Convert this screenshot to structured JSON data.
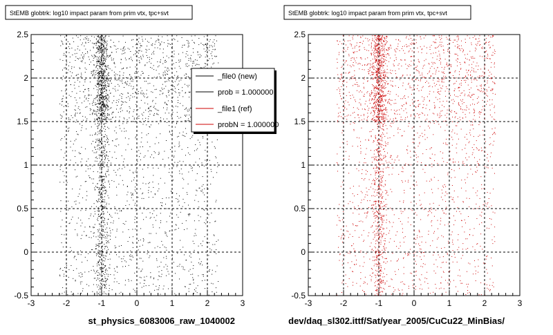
{
  "colors": {
    "background": "#ffffff",
    "new": "#000000",
    "ref": "#cc0000",
    "grid": "#000000",
    "legend_shadow": "#000000"
  },
  "footer_text": "",
  "legend": {
    "entries": [
      {
        "label": "_file0 (new)",
        "color": "#000000"
      },
      {
        "label": "prob = 1.000000",
        "color": "#000000"
      },
      {
        "label": "_file1 (ref)",
        "color": "#cc0000"
      },
      {
        "label": "probN = 1.000000",
        "color": "#cc0000"
      }
    ]
  },
  "chart_data": [
    {
      "type": "scatter",
      "title": "StEMB globtrk: log10 impact param from prim vtx, tpc+svt",
      "xlabel": "st_physics_6083006_raw_1040002",
      "ylabel": "",
      "xlim": [
        -3,
        3
      ],
      "ylim": [
        -0.5,
        2.5
      ],
      "xticks": [
        "-3",
        "-2",
        "-1",
        "0",
        "1",
        "2",
        "3"
      ],
      "yticks": [
        "-0.5",
        "0",
        "0.5",
        "1",
        "1.5",
        "2",
        "2.5"
      ],
      "grid": true,
      "legend_position": "top-right",
      "series": [
        {
          "name": "_file0 (new)",
          "color": "#000000",
          "x_range": [
            -2.2,
            2.3
          ],
          "y_range": [
            -0.5,
            2.5
          ],
          "dense_y_range": [
            1.5,
            2.5
          ],
          "dense_x_peak": -1
        }
      ]
    },
    {
      "type": "scatter",
      "title": "StEMB globtrk: log10 impact param from prim vtx, tpc+svt",
      "xlabel": "dev/daq_sl302.ittf/Sat/year_2005/CuCu22_MinBias/",
      "ylabel": "",
      "xlim": [
        -3,
        3
      ],
      "ylim": [
        -0.5,
        2.5
      ],
      "xticks": [
        "-3",
        "-2",
        "-1",
        "0",
        "1",
        "2",
        "3"
      ],
      "yticks": [
        "-0.5",
        "0",
        "0.5",
        "1",
        "1.5",
        "2",
        "2.5"
      ],
      "grid": true,
      "series": [
        {
          "name": "_file1 (ref)",
          "color": "#cc0000",
          "x_range": [
            -2.2,
            2.3
          ],
          "y_range": [
            -0.5,
            2.5
          ],
          "dense_y_range": [
            1.5,
            2.5
          ],
          "dense_x_peak": -1
        }
      ]
    }
  ]
}
